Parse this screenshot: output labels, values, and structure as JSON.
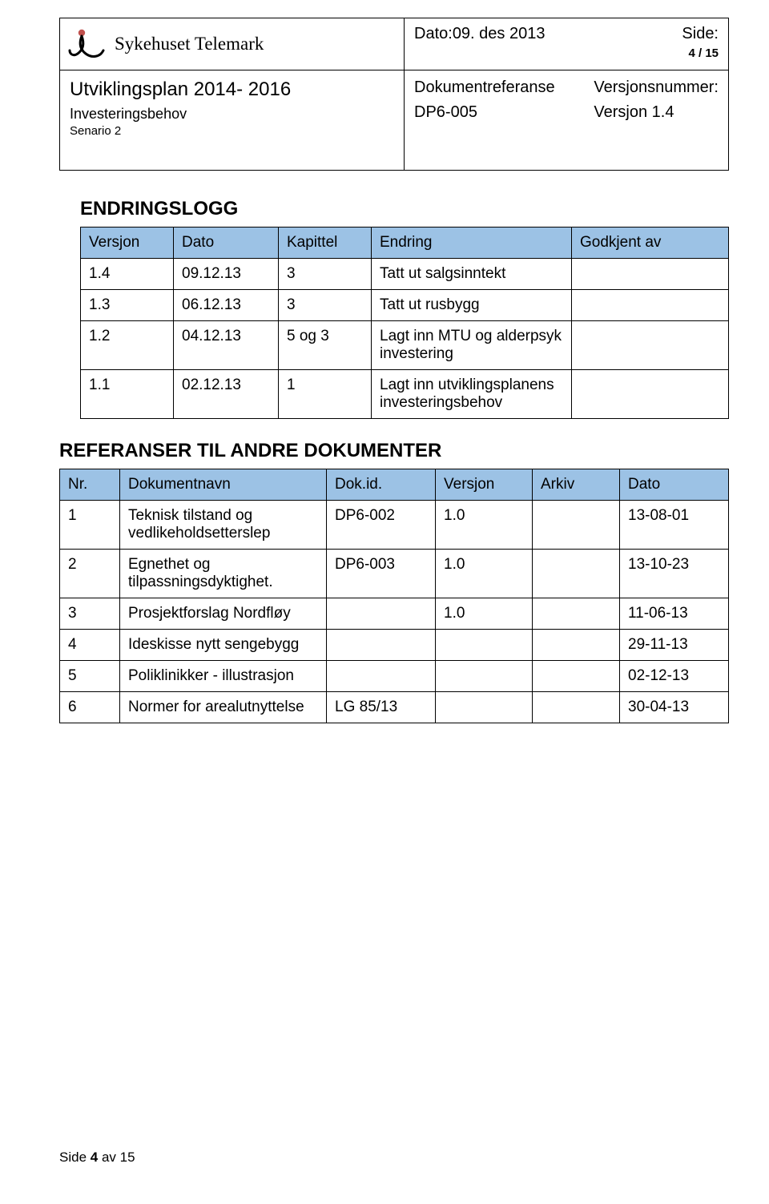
{
  "header": {
    "brand": "Sykehuset Telemark",
    "date_label": "Dato:",
    "date_value": "09. des 2013",
    "side_label": "Side:",
    "side_value": "4 / 15",
    "title": "Utviklingsplan 2014- 2016",
    "subtitle": "Investeringsbehov",
    "scenario": "Senario 2",
    "docref_label": "Dokumentreferanse",
    "docref_value": "DP6-005",
    "version_label": "Versjonsnummer:",
    "version_value": "Versjon 1.4"
  },
  "sections": {
    "endringslogg": "ENDRINGSLOGG",
    "referanser": "REFERANSER TIL ANDRE DOKUMENTER"
  },
  "endr": {
    "columns": {
      "versjon": "Versjon",
      "dato": "Dato",
      "kapittel": "Kapittel",
      "endring": "Endring",
      "godkjent": "Godkjent av"
    },
    "rows": [
      {
        "versjon": "1.4",
        "dato": "09.12.13",
        "kapittel": "3",
        "endring": "Tatt ut salgsinntekt",
        "godkjent": ""
      },
      {
        "versjon": "1.3",
        "dato": "06.12.13",
        "kapittel": "3",
        "endring": "Tatt ut rusbygg",
        "godkjent": ""
      },
      {
        "versjon": "1.2",
        "dato": "04.12.13",
        "kapittel": "5 og 3",
        "endring": "Lagt inn MTU  og alderpsyk investering",
        "godkjent": ""
      },
      {
        "versjon": "1.1",
        "dato": "02.12.13",
        "kapittel": "1",
        "endring": "Lagt inn utviklingsplanens investeringsbehov",
        "godkjent": ""
      }
    ]
  },
  "ref": {
    "columns": {
      "nr": "Nr.",
      "navn": "Dokumentnavn",
      "id": "Dok.id.",
      "versjon": "Versjon",
      "arkiv": "Arkiv",
      "dato": "Dato"
    },
    "rows": [
      {
        "nr": "1",
        "navn": "Teknisk tilstand og vedlikeholdsetterslep",
        "id": "DP6-002",
        "versjon": "1.0",
        "arkiv": "",
        "dato": "13-08-01"
      },
      {
        "nr": "2",
        "navn": "Egnethet og tilpassningsdyktighet.",
        "id": "DP6-003",
        "versjon": "1.0",
        "arkiv": "",
        "dato": "13-10-23"
      },
      {
        "nr": "3",
        "navn": "Prosjektforslag Nordfløy",
        "id": "",
        "versjon": "1.0",
        "arkiv": "",
        "dato": "11-06-13"
      },
      {
        "nr": "4",
        "navn": "Ideskisse nytt sengebygg",
        "id": "",
        "versjon": "",
        "arkiv": "",
        "dato": "29-11-13"
      },
      {
        "nr": "5",
        "navn": "Poliklinikker - illustrasjon",
        "id": "",
        "versjon": "",
        "arkiv": "",
        "dato": "02-12-13"
      },
      {
        "nr": "6",
        "navn": "Normer for arealutnyttelse",
        "id": "LG 85/13",
        "versjon": "",
        "arkiv": "",
        "dato": "30-04-13"
      }
    ]
  },
  "footer": {
    "prefix": "Side ",
    "bold": "4",
    "suffix": " av 15"
  },
  "style": {
    "header_bg": "#9cc2e5",
    "border_color": "#000000",
    "font_body": "Arial",
    "font_brand": "Georgia"
  }
}
